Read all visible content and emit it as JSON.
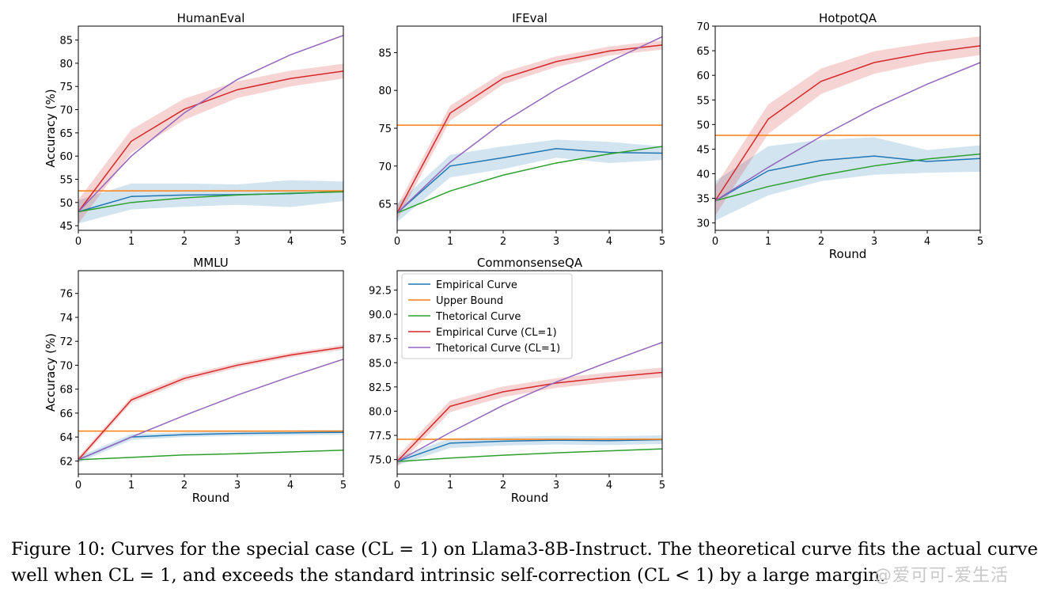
{
  "chart_data": [
    {
      "type": "line",
      "title": "HumanEval",
      "xlabel": "",
      "ylabel": "Accuracy (%)",
      "x": [
        0,
        1,
        2,
        3,
        4,
        5
      ],
      "xlim": [
        0,
        5
      ],
      "ylim": [
        44,
        88
      ],
      "yticks": [
        45,
        50,
        55,
        60,
        65,
        70,
        75,
        80,
        85
      ],
      "grid": false,
      "series": [
        {
          "name": "Empirical Curve",
          "color": "#1f77b4",
          "values": [
            48.0,
            51.3,
            51.6,
            51.7,
            51.9,
            52.4
          ],
          "band": [
            2.5,
            2.8,
            2.5,
            2.2,
            2.9,
            2.1
          ]
        },
        {
          "name": "Upper Bound",
          "color": "#ff7f0e",
          "values": [
            52.5,
            52.5,
            52.5,
            52.5,
            52.5,
            52.5
          ]
        },
        {
          "name": "Thetorical Curve",
          "color": "#2ca02c",
          "values": [
            48.0,
            50.0,
            51.0,
            51.6,
            52.0,
            52.3
          ]
        },
        {
          "name": "Empirical Curve (CL=1)",
          "color": "#d62728",
          "values": [
            48.0,
            63.2,
            70.1,
            74.3,
            76.7,
            78.3
          ],
          "band": [
            2.6,
            2.5,
            2.3,
            1.8,
            1.7,
            1.6
          ]
        },
        {
          "name": "Thetorical Curve (CL=1)",
          "color": "#9467bd",
          "values": [
            48.0,
            60.0,
            69.3,
            76.5,
            81.8,
            86.0
          ]
        }
      ]
    },
    {
      "type": "line",
      "title": "IFEval",
      "xlabel": "",
      "ylabel": "",
      "x": [
        0,
        1,
        2,
        3,
        4,
        5
      ],
      "xlim": [
        0,
        5
      ],
      "ylim": [
        61.5,
        88.5
      ],
      "yticks": [
        65,
        70,
        75,
        80,
        85
      ],
      "grid": false,
      "series": [
        {
          "name": "Empirical Curve",
          "color": "#1f77b4",
          "values": [
            63.8,
            70.0,
            71.1,
            72.3,
            71.8,
            71.7
          ],
          "band": [
            1.2,
            1.5,
            1.5,
            1.2,
            1.4,
            0.9
          ]
        },
        {
          "name": "Upper Bound",
          "color": "#ff7f0e",
          "values": [
            75.4,
            75.4,
            75.4,
            75.4,
            75.4,
            75.4
          ]
        },
        {
          "name": "Thetorical Curve",
          "color": "#2ca02c",
          "values": [
            63.8,
            66.7,
            68.8,
            70.4,
            71.6,
            72.6
          ]
        },
        {
          "name": "Empirical Curve (CL=1)",
          "color": "#d62728",
          "values": [
            63.8,
            77.0,
            81.6,
            83.8,
            85.2,
            86.0
          ],
          "band": [
            0.9,
            1.0,
            0.8,
            0.7,
            0.6,
            0.6
          ]
        },
        {
          "name": "Thetorical Curve (CL=1)",
          "color": "#9467bd",
          "values": [
            63.8,
            70.5,
            75.8,
            80.1,
            83.8,
            87.1
          ]
        }
      ]
    },
    {
      "type": "line",
      "title": "HotpotQA",
      "xlabel": "Round",
      "ylabel": "",
      "x": [
        0,
        1,
        2,
        3,
        4,
        5
      ],
      "xlim": [
        0,
        5
      ],
      "ylim": [
        28.5,
        70
      ],
      "yticks": [
        30,
        35,
        40,
        45,
        50,
        55,
        60,
        65,
        70
      ],
      "grid": false,
      "series": [
        {
          "name": "Empirical Curve",
          "color": "#1f77b4",
          "values": [
            34.5,
            40.6,
            42.7,
            43.6,
            42.5,
            43.1
          ],
          "band": [
            4.0,
            5.0,
            4.2,
            3.8,
            2.3,
            2.7
          ]
        },
        {
          "name": "Upper Bound",
          "color": "#ff7f0e",
          "values": [
            47.8,
            47.8,
            47.8,
            47.8,
            47.8,
            47.8
          ]
        },
        {
          "name": "Thetorical Curve",
          "color": "#2ca02c",
          "values": [
            34.5,
            37.4,
            39.7,
            41.6,
            43.0,
            44.0
          ]
        },
        {
          "name": "Empirical Curve (CL=1)",
          "color": "#d62728",
          "values": [
            34.5,
            51.1,
            58.8,
            62.6,
            64.6,
            66.0
          ],
          "band": [
            3.0,
            3.0,
            2.6,
            2.3,
            2.0,
            1.9
          ]
        },
        {
          "name": "Thetorical Curve (CL=1)",
          "color": "#9467bd",
          "values": [
            34.5,
            41.3,
            47.6,
            53.3,
            58.2,
            62.6
          ]
        }
      ]
    },
    {
      "type": "line",
      "title": "MMLU",
      "xlabel": "Round",
      "ylabel": "Accuracy (%)",
      "x": [
        0,
        1,
        2,
        3,
        4,
        5
      ],
      "xlim": [
        0,
        5
      ],
      "ylim": [
        60.9,
        77.9
      ],
      "yticks": [
        62,
        64,
        66,
        68,
        70,
        72,
        74,
        76
      ],
      "grid": false,
      "series": [
        {
          "name": "Empirical Curve",
          "color": "#1f77b4",
          "values": [
            62.1,
            64.0,
            64.2,
            64.3,
            64.35,
            64.4
          ],
          "band": [
            0.25,
            0.25,
            0.2,
            0.2,
            0.2,
            0.2
          ]
        },
        {
          "name": "Upper Bound",
          "color": "#ff7f0e",
          "values": [
            64.5,
            64.5,
            64.5,
            64.5,
            64.5,
            64.5
          ]
        },
        {
          "name": "Thetorical Curve",
          "color": "#2ca02c",
          "values": [
            62.1,
            62.3,
            62.5,
            62.6,
            62.75,
            62.9
          ]
        },
        {
          "name": "Empirical Curve (CL=1)",
          "color": "#d62728",
          "values": [
            62.1,
            67.1,
            68.9,
            70.0,
            70.85,
            71.5
          ],
          "band": [
            0.25,
            0.25,
            0.25,
            0.2,
            0.2,
            0.2
          ]
        },
        {
          "name": "Thetorical Curve (CL=1)",
          "color": "#9467bd",
          "values": [
            62.1,
            64.0,
            65.8,
            67.5,
            69.05,
            70.5
          ]
        }
      ]
    },
    {
      "type": "line",
      "title": "CommonsenseQA",
      "xlabel": "Round",
      "ylabel": "",
      "x": [
        0,
        1,
        2,
        3,
        4,
        5
      ],
      "xlim": [
        0,
        5
      ],
      "ylim": [
        73.5,
        94.5
      ],
      "yticks": [
        75.0,
        77.5,
        80.0,
        82.5,
        85.0,
        87.5,
        90.0,
        92.5
      ],
      "grid": false,
      "legend": "top-left",
      "series": [
        {
          "name": "Empirical Curve",
          "color": "#1f77b4",
          "values": [
            74.8,
            76.7,
            76.9,
            77.0,
            76.95,
            77.05
          ],
          "band": [
            0.4,
            0.5,
            0.45,
            0.45,
            0.45,
            0.45
          ]
        },
        {
          "name": "Upper Bound",
          "color": "#ff7f0e",
          "values": [
            77.1,
            77.1,
            77.1,
            77.1,
            77.1,
            77.1
          ]
        },
        {
          "name": "Thetorical Curve",
          "color": "#2ca02c",
          "values": [
            74.8,
            75.15,
            75.45,
            75.7,
            75.9,
            76.1
          ]
        },
        {
          "name": "Empirical Curve (CL=1)",
          "color": "#d62728",
          "values": [
            74.8,
            80.5,
            82.0,
            82.9,
            83.5,
            84.0
          ],
          "band": [
            0.5,
            0.6,
            0.55,
            0.5,
            0.5,
            0.5
          ]
        },
        {
          "name": "Thetorical Curve (CL=1)",
          "color": "#9467bd",
          "values": [
            74.8,
            77.8,
            80.6,
            83.0,
            85.1,
            87.1
          ]
        }
      ]
    }
  ],
  "caption": {
    "line1": "Figure 10: Curves for the special case (CL = 1) on Llama3-8B-Instruct. The theoretical curve fits the actual curve",
    "line2": "well when CL = 1, and exceeds the standard intrinsic self-correction (CL < 1) by a large margin."
  },
  "watermark": "@爱可可-爱生活"
}
